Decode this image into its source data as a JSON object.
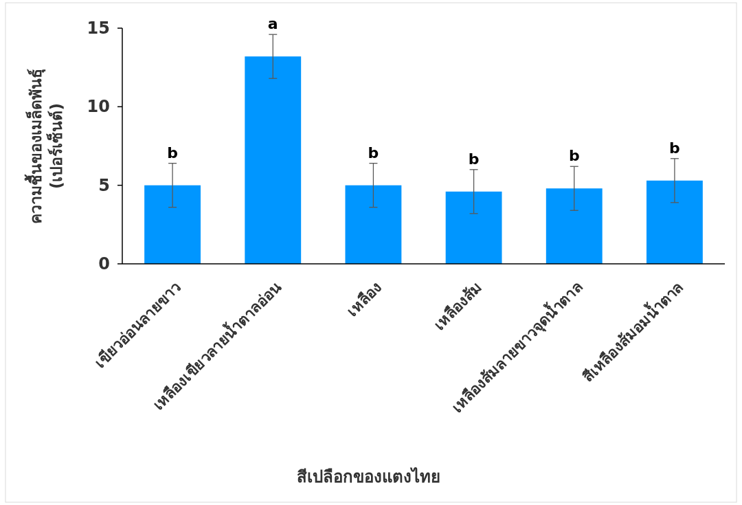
{
  "chart_data": {
    "type": "bar",
    "xlabel": "สีเปลือกของแตงไทย",
    "ylabel": "ความชื้นของเมล็ดพันธุ์ (เปอร์เซ็นต์)",
    "categories": [
      "เขียวอ่อนลายขาว",
      "เหลืองเขียวลายน้ำตาลอ่อน",
      "เหลือง",
      "เหลืองส้ม",
      "เหลืองส้มลายขาวจุดน้ำตาล",
      "สีเหลืองส้มอมน้ำตาล"
    ],
    "values": [
      5.0,
      13.2,
      5.0,
      4.6,
      4.8,
      5.3
    ],
    "errors": [
      1.4,
      1.4,
      1.4,
      1.4,
      1.4,
      1.4
    ],
    "color": "#0096ff",
    "ylim": [
      0,
      15
    ],
    "yticks": [
      0,
      5,
      10,
      15
    ],
    "grid": false,
    "annotations": [
      {
        "text": "b",
        "x": "เขียวอ่อนลายขาว",
        "y": 6.4
      },
      {
        "text": "a",
        "x": "เหลืองเขียวลายน้ำตาลอ่อน",
        "y": 14.6
      },
      {
        "text": "b",
        "x": "เหลือง",
        "y": 6.4
      },
      {
        "text": "b",
        "x": "เหลืองส้ม",
        "y": 6.0
      },
      {
        "text": "b",
        "x": "เหลืองส้มลายขาวจุดน้ำตาล",
        "y": 6.2
      },
      {
        "text": "b",
        "x": "สีเหลืองส้มอมน้ำตาล",
        "y": 6.7
      }
    ]
  }
}
